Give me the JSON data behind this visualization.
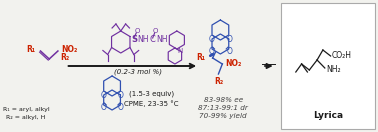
{
  "bg_color": "#f2f2ee",
  "text_color_black": "#1a1a1a",
  "text_color_red": "#cc2200",
  "text_color_purple": "#7030a0",
  "text_color_blue": "#3050b0",
  "text_color_italic": "#444444",
  "arrow_color": "#1a1a1a",
  "box_edge_color": "#aaaaaa",
  "catalyst_label": "(0.2-3 mol %)",
  "reagent_label": "(1.5-3 equiv)",
  "solvent_label": "CPME, 23-35 °C",
  "r1_label": "R₁ = aryl, alkyl",
  "r2_label": "R₂ = alkyl, H",
  "result1": "83-98% ee",
  "result2": "87:13-99:1 dr",
  "result3": "70-99% yield",
  "lyrica_label": "Lyrica",
  "figsize": [
    3.78,
    1.32
  ],
  "dpi": 100
}
